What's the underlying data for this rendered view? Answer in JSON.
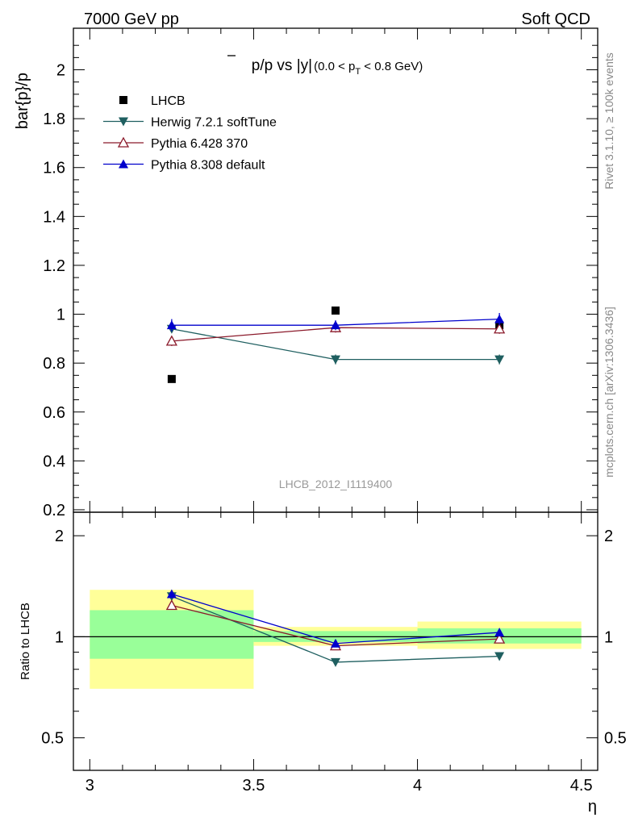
{
  "header": {
    "left": "7000 GeV pp",
    "right": "Soft QCD"
  },
  "side_labels": {
    "rivet": "Rivet 3.1.10, ≥ 100k events",
    "mcplots": "mcplots.cern.ch [arXiv:1306.3436]"
  },
  "watermark": "LHCB_2012_I1119400",
  "colors": {
    "lhcb": "#000000",
    "herwig": "#1f5f60",
    "pythia6": "#8b1a2b",
    "pythia8": "#0000cc",
    "band_yellow": "#ffff99",
    "band_green": "#99ff99"
  },
  "chart_data": [
    {
      "type": "scatter",
      "panel": "main",
      "title": "p̄/p vs |y|",
      "title_parts": {
        "p": "p",
        "rest": "/p vs |y|",
        "cut_open": "(0.0 < p",
        "cut_sub": "T",
        "cut_close": " < 0.8 GeV)"
      },
      "xlabel": "",
      "ylabel": "bar{p}/p",
      "xlim": [
        2.95,
        4.55
      ],
      "ylim": [
        0.19,
        2.17
      ],
      "x_ticks": [
        3,
        3.5,
        4,
        4.5
      ],
      "y_ticks": [
        0.2,
        0.4,
        0.6,
        0.8,
        1,
        1.2,
        1.4,
        1.6,
        1.8,
        2
      ],
      "y_tick_labels": [
        "0.2",
        "0.4",
        "0.6",
        "0.8",
        "1",
        "1.2",
        "1.4",
        "1.6",
        "1.8",
        "2"
      ],
      "legend_position": "top-left",
      "series": [
        {
          "name": "LHCB",
          "key": "lhcb",
          "marker": "square",
          "x": [
            3.25,
            3.75,
            4.25
          ],
          "values": [
            0.735,
            1.015,
            0.955
          ],
          "errors": [
            0.0,
            0.0,
            0.0
          ]
        },
        {
          "name": "Herwig 7.2.1 softTune",
          "key": "herwig",
          "marker": "triangle-down",
          "x": [
            3.25,
            3.75,
            4.25
          ],
          "values": [
            0.94,
            0.815,
            0.815
          ],
          "errors": [
            0.0,
            0.02,
            0.02
          ]
        },
        {
          "name": "Pythia 6.428 370",
          "key": "pythia6",
          "marker": "triangle-up-open",
          "x": [
            3.25,
            3.75,
            4.25
          ],
          "values": [
            0.89,
            0.945,
            0.94
          ],
          "errors": [
            0.02,
            0.02,
            0.02
          ]
        },
        {
          "name": "Pythia 8.308 default",
          "key": "pythia8",
          "marker": "triangle-up",
          "x": [
            3.25,
            3.75,
            4.25
          ],
          "values": [
            0.955,
            0.955,
            0.98
          ],
          "errors": [
            0.025,
            0.02,
            0.025
          ]
        }
      ]
    },
    {
      "type": "scatter",
      "panel": "ratio",
      "xlabel": "η",
      "ylabel": "Ratio to LHCB",
      "xlim": [
        2.95,
        4.55
      ],
      "ylim": [
        0.4,
        2.35
      ],
      "y_scale": "log",
      "x_ticks": [
        3,
        3.5,
        4,
        4.5
      ],
      "x_tick_labels": [
        "3",
        "3.5",
        "4",
        "4.5"
      ],
      "y_ticks": [
        0.5,
        1,
        2
      ],
      "y_tick_labels": [
        "0.5",
        "1",
        "2"
      ],
      "reference_line": 1,
      "bands": [
        {
          "x_low": 3.0,
          "x_high": 3.5,
          "yellow": [
            0.7,
            1.38
          ],
          "green": [
            0.86,
            1.2
          ]
        },
        {
          "x_low": 3.5,
          "x_high": 4.0,
          "yellow": [
            0.94,
            1.07
          ],
          "green": [
            0.965,
            1.04
          ]
        },
        {
          "x_low": 4.0,
          "x_high": 4.5,
          "yellow": [
            0.92,
            1.11
          ],
          "green": [
            0.955,
            1.06
          ]
        }
      ],
      "series": [
        {
          "name": "Herwig 7.2.1 softTune",
          "key": "herwig",
          "marker": "triangle-down",
          "x": [
            3.25,
            3.75,
            4.25
          ],
          "values": [
            1.32,
            0.84,
            0.875
          ],
          "errors": [
            0.0,
            0.0,
            0.0
          ]
        },
        {
          "name": "Pythia 6.428 370",
          "key": "pythia6",
          "marker": "triangle-up-open",
          "x": [
            3.25,
            3.75,
            4.25
          ],
          "values": [
            1.24,
            0.94,
            0.985
          ],
          "errors": [
            0.0,
            0.0,
            0.0
          ]
        },
        {
          "name": "Pythia 8.308 default",
          "key": "pythia8",
          "marker": "triangle-up",
          "x": [
            3.25,
            3.75,
            4.25
          ],
          "values": [
            1.34,
            0.955,
            1.03
          ],
          "errors": [
            0.02,
            0.0,
            0.0
          ]
        }
      ]
    }
  ]
}
